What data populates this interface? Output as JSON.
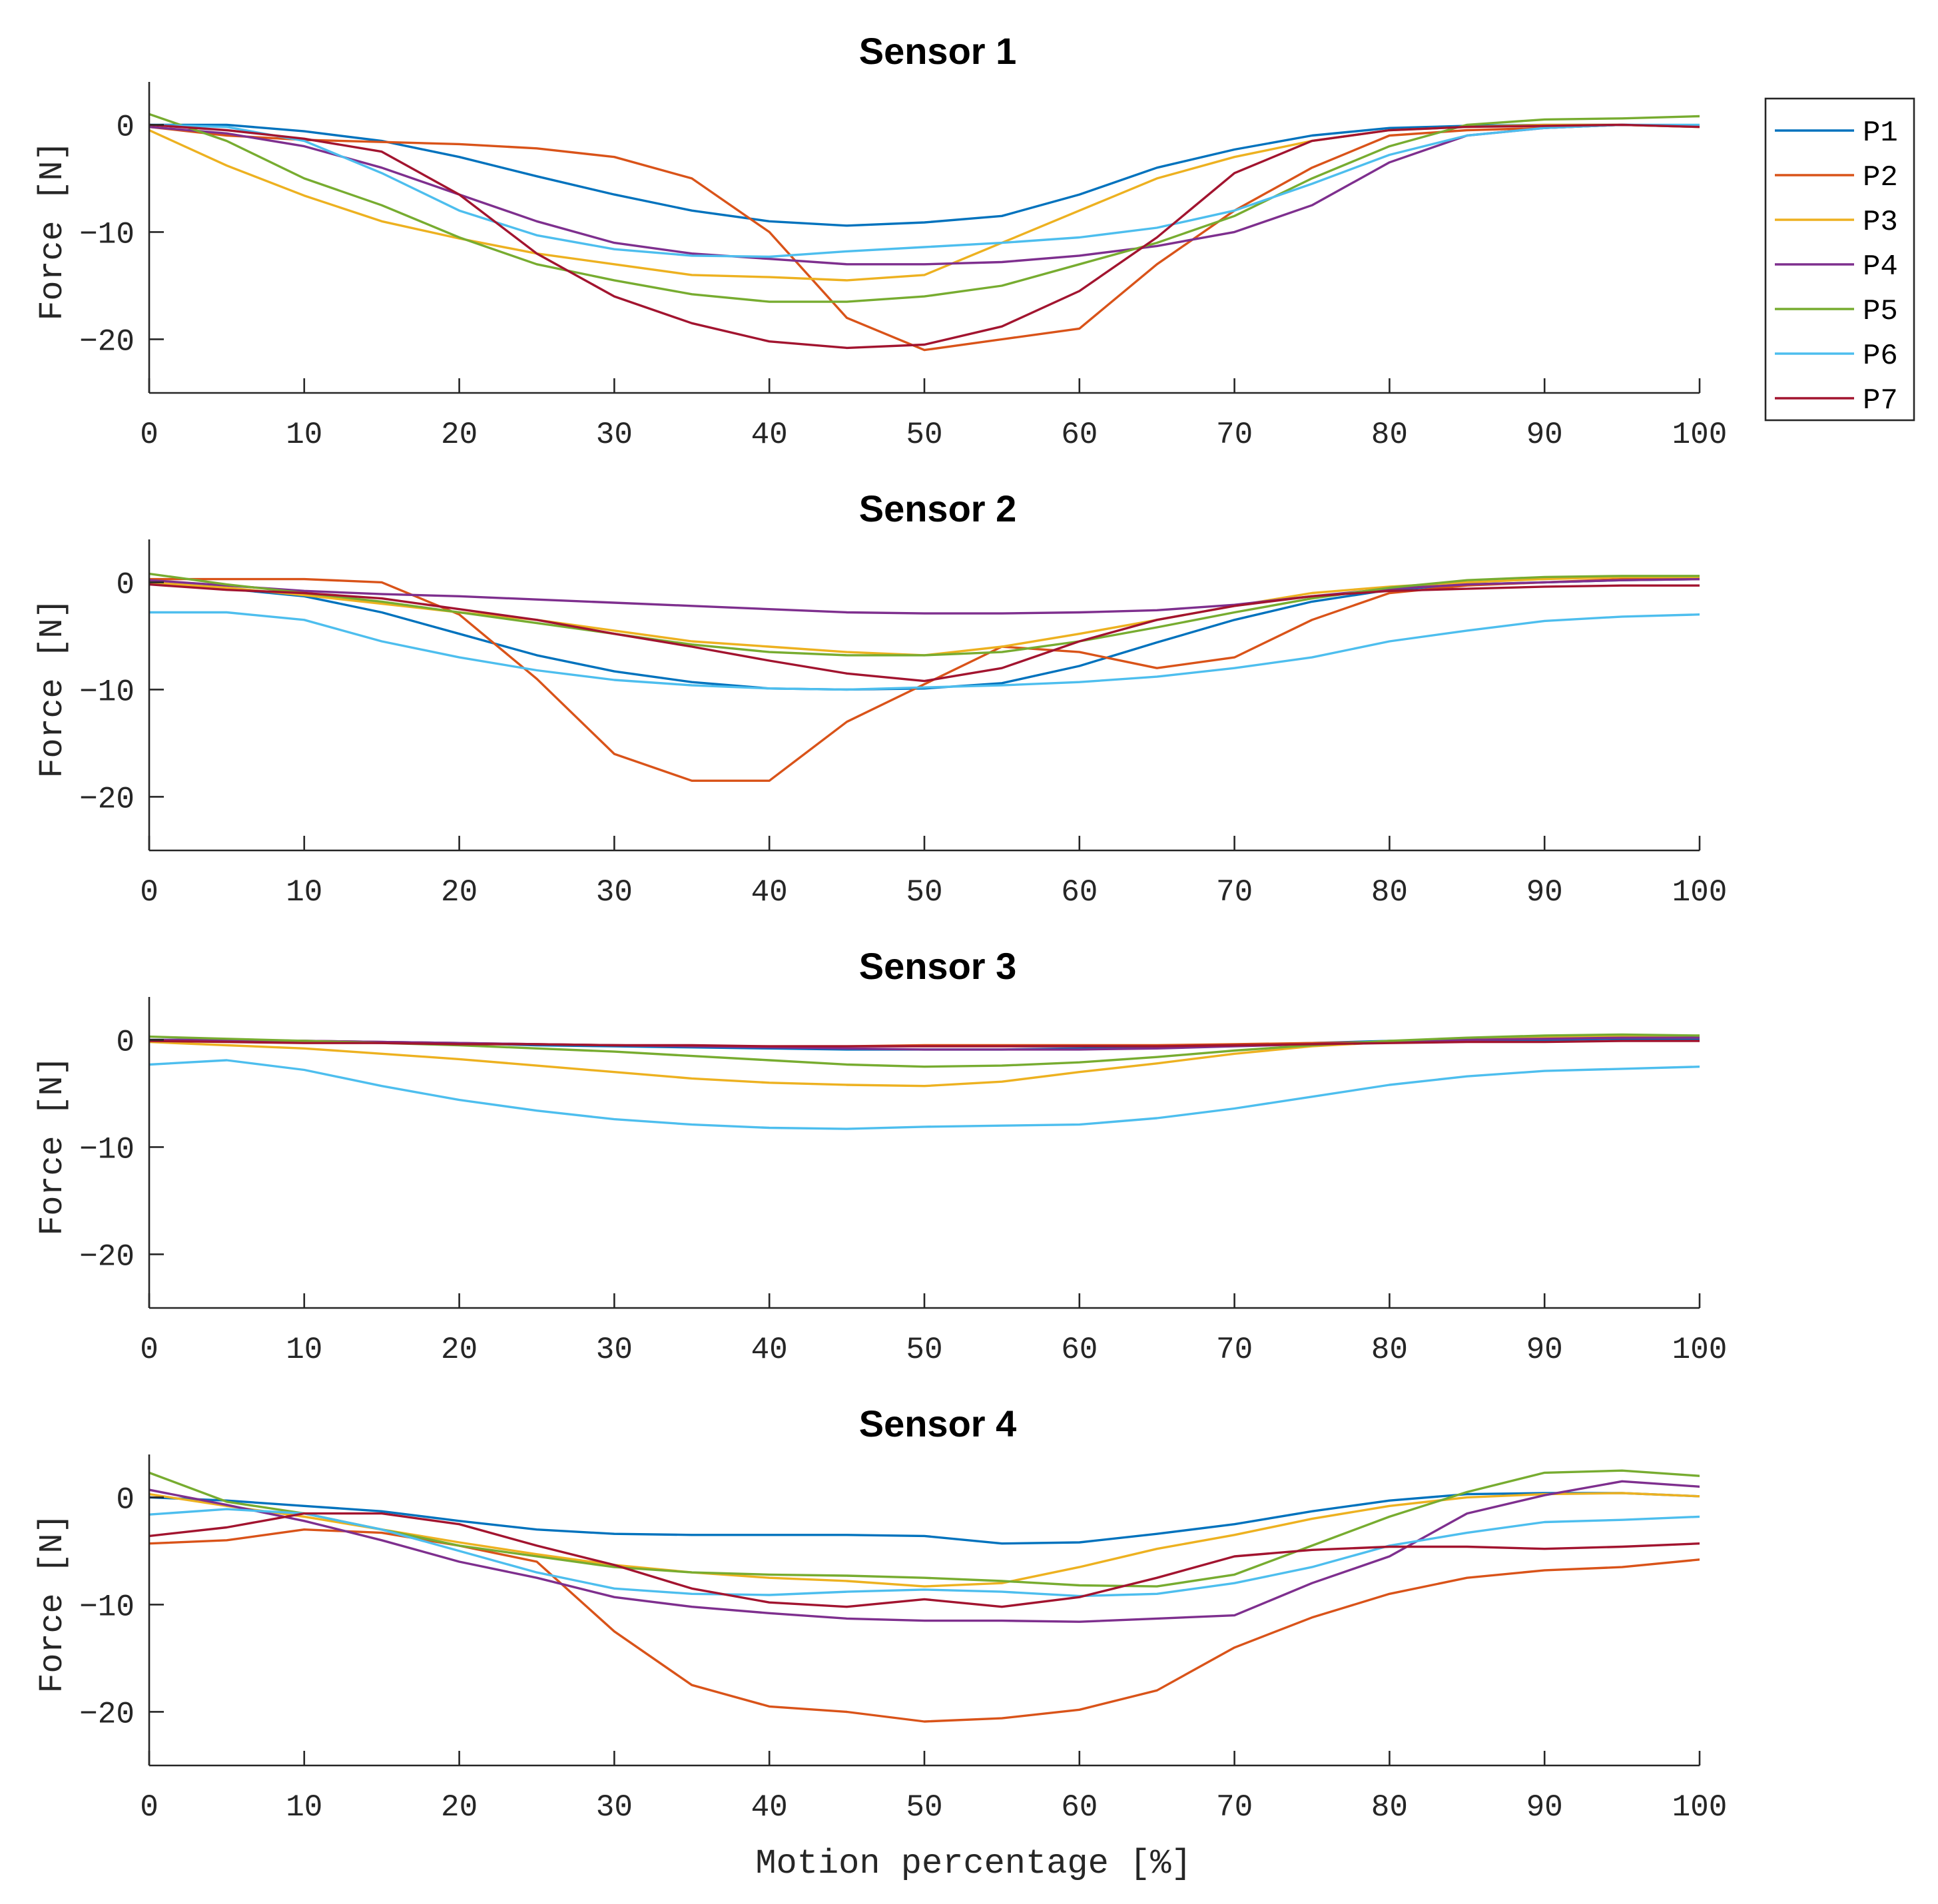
{
  "chart_data": {
    "type": "line",
    "xlabel": "Motion percentage [%]",
    "xlim": [
      0,
      100
    ],
    "xticks": [
      0,
      10,
      20,
      30,
      40,
      50,
      60,
      70,
      80,
      90,
      100
    ],
    "legend": {
      "placement": "right of top panel",
      "entries": [
        "P1",
        "P2",
        "P3",
        "P4",
        "P5",
        "P6",
        "P7"
      ]
    },
    "colors": {
      "P1": "#0072BD",
      "P2": "#D95319",
      "P3": "#EDB120",
      "P4": "#7E2F8E",
      "P5": "#77AC30",
      "P6": "#4DBEEE",
      "P7": "#A2142F"
    },
    "x": [
      0,
      5,
      10,
      15,
      20,
      25,
      30,
      35,
      40,
      45,
      50,
      55,
      60,
      65,
      70,
      75,
      80,
      85,
      90,
      95,
      100
    ],
    "panels": [
      {
        "title": "Sensor 1",
        "ylabel": "Force [N]",
        "ylim": [
          -25,
          4
        ],
        "yticks": [
          0,
          -10,
          -20
        ],
        "series": [
          {
            "name": "P1",
            "values": [
              0,
              0,
              -0.6,
              -1.5,
              -3,
              -4.8,
              -6.5,
              -8,
              -9,
              -9.4,
              -9.1,
              -8.5,
              -6.5,
              -4,
              -2.3,
              -1,
              -0.3,
              -0.1,
              0,
              0,
              -0.1
            ]
          },
          {
            "name": "P2",
            "values": [
              -0.2,
              -1,
              -1.4,
              -1.6,
              -1.8,
              -2.2,
              -3,
              -5,
              -10,
              -18,
              -21,
              -20,
              -19,
              -13,
              -8,
              -4,
              -1,
              -0.5,
              -0.3,
              0,
              -0.2
            ]
          },
          {
            "name": "P3",
            "values": [
              -0.5,
              -3.8,
              -6.6,
              -9,
              -10.6,
              -12,
              -13,
              -14,
              -14.2,
              -14.5,
              -14,
              -11,
              -8,
              -5,
              -3,
              -1.5,
              -0.5,
              -0.2,
              0,
              0,
              -0.2
            ]
          },
          {
            "name": "P4",
            "values": [
              -0.2,
              -0.8,
              -2,
              -4,
              -6.5,
              -9,
              -11,
              -12,
              -12.5,
              -13,
              -13,
              -12.8,
              -12.2,
              -11.3,
              -10,
              -7.5,
              -3.5,
              -1,
              -0.3,
              0,
              -0.1
            ]
          },
          {
            "name": "P5",
            "values": [
              1,
              -1.5,
              -5,
              -7.5,
              -10.5,
              -13,
              -14.5,
              -15.8,
              -16.5,
              -16.5,
              -16,
              -15,
              -13,
              -11,
              -8.5,
              -5,
              -2,
              0,
              0.5,
              0.6,
              0.8
            ]
          },
          {
            "name": "P6",
            "values": [
              0,
              -0.2,
              -1.5,
              -4.5,
              -8,
              -10.3,
              -11.6,
              -12.2,
              -12.3,
              -11.8,
              -11.4,
              -11,
              -10.5,
              -9.6,
              -8,
              -5.5,
              -2.8,
              -1,
              -0.3,
              0,
              0
            ]
          },
          {
            "name": "P7",
            "values": [
              0,
              -0.5,
              -1.3,
              -2.5,
              -6.5,
              -12,
              -16,
              -18.5,
              -20.2,
              -20.8,
              -20.5,
              -18.8,
              -15.5,
              -10.5,
              -4.5,
              -1.5,
              -0.5,
              -0.2,
              -0.1,
              0,
              -0.2
            ]
          }
        ]
      },
      {
        "title": "Sensor 2",
        "ylabel": "Force [N]",
        "ylim": [
          -25,
          4
        ],
        "yticks": [
          0,
          -10,
          -20
        ],
        "series": [
          {
            "name": "P1",
            "values": [
              0,
              -0.6,
              -1.3,
              -2.8,
              -4.8,
              -6.8,
              -8.3,
              -9.3,
              -9.9,
              -10,
              -9.9,
              -9.4,
              -7.8,
              -5.6,
              -3.5,
              -1.8,
              -0.7,
              -0.2,
              0,
              0.2,
              0.3
            ]
          },
          {
            "name": "P2",
            "values": [
              0.3,
              0.3,
              0.3,
              0,
              -3,
              -9,
              -16,
              -18.5,
              -18.5,
              -13,
              -9.5,
              -6,
              -6.5,
              -8,
              -7,
              -3.5,
              -1,
              -0.3,
              0,
              0.3,
              0.3
            ]
          },
          {
            "name": "P3",
            "values": [
              0,
              -0.5,
              -1.2,
              -2,
              -2.8,
              -3.5,
              -4.5,
              -5.5,
              -6,
              -6.5,
              -6.8,
              -6,
              -4.8,
              -3.5,
              -2.2,
              -1,
              -0.4,
              0,
              0.3,
              0.5,
              0.5
            ]
          },
          {
            "name": "P4",
            "values": [
              0.2,
              -0.3,
              -0.8,
              -1.1,
              -1.3,
              -1.6,
              -1.9,
              -2.2,
              -2.5,
              -2.8,
              -2.9,
              -2.9,
              -2.8,
              -2.6,
              -2.1,
              -1.3,
              -0.6,
              -0.2,
              0,
              0.2,
              0.3
            ]
          },
          {
            "name": "P5",
            "values": [
              0.8,
              -0.2,
              -1,
              -1.8,
              -2.8,
              -3.8,
              -4.8,
              -5.8,
              -6.5,
              -6.8,
              -6.8,
              -6.5,
              -5.5,
              -4.2,
              -2.8,
              -1.5,
              -0.5,
              0.2,
              0.5,
              0.6,
              0.6
            ]
          },
          {
            "name": "P6",
            "values": [
              -2.8,
              -2.8,
              -3.5,
              -5.5,
              -7,
              -8.2,
              -9.1,
              -9.6,
              -9.9,
              -10,
              -9.8,
              -9.6,
              -9.3,
              -8.8,
              -8,
              -7,
              -5.5,
              -4.5,
              -3.6,
              -3.2,
              -3
            ]
          },
          {
            "name": "P7",
            "values": [
              -0.2,
              -0.7,
              -1,
              -1.5,
              -2.5,
              -3.5,
              -4.8,
              -6,
              -7.3,
              -8.5,
              -9.2,
              -8,
              -5.5,
              -3.5,
              -2.2,
              -1.3,
              -0.8,
              -0.6,
              -0.4,
              -0.3,
              -0.3
            ]
          }
        ]
      },
      {
        "title": "Sensor 3",
        "ylabel": "Force [N]",
        "ylim": [
          -25,
          4
        ],
        "yticks": [
          0,
          -10,
          -20
        ],
        "series": [
          {
            "name": "P1",
            "values": [
              0,
              0,
              -0.1,
              -0.2,
              -0.3,
              -0.5,
              -0.6,
              -0.7,
              -0.8,
              -0.9,
              -0.9,
              -0.9,
              -0.8,
              -0.7,
              -0.5,
              -0.3,
              -0.1,
              0,
              0,
              0.1,
              0.1
            ]
          },
          {
            "name": "P2",
            "values": [
              -0.1,
              -0.1,
              -0.1,
              -0.2,
              -0.3,
              -0.4,
              -0.5,
              -0.6,
              -0.6,
              -0.6,
              -0.5,
              -0.5,
              -0.5,
              -0.5,
              -0.4,
              -0.3,
              -0.2,
              0,
              0.2,
              0.3,
              0.3
            ]
          },
          {
            "name": "P3",
            "values": [
              -0.2,
              -0.5,
              -0.8,
              -1.3,
              -1.8,
              -2.4,
              -3,
              -3.6,
              -4,
              -4.2,
              -4.3,
              -3.9,
              -3,
              -2.2,
              -1.3,
              -0.6,
              -0.2,
              0,
              0.2,
              0.3,
              0.4
            ]
          },
          {
            "name": "P4",
            "values": [
              0,
              0,
              -0.1,
              -0.2,
              -0.3,
              -0.4,
              -0.5,
              -0.6,
              -0.7,
              -0.8,
              -0.9,
              -0.9,
              -0.9,
              -0.8,
              -0.6,
              -0.4,
              -0.2,
              0,
              0.1,
              0.2,
              0.2
            ]
          },
          {
            "name": "P5",
            "values": [
              0.3,
              0.1,
              -0.1,
              -0.3,
              -0.5,
              -0.8,
              -1.1,
              -1.5,
              -1.9,
              -2.3,
              -2.5,
              -2.4,
              -2.1,
              -1.6,
              -1,
              -0.5,
              -0.1,
              0.2,
              0.4,
              0.5,
              0.4
            ]
          },
          {
            "name": "P6",
            "values": [
              -2.3,
              -1.9,
              -2.8,
              -4.3,
              -5.6,
              -6.6,
              -7.4,
              -7.9,
              -8.2,
              -8.3,
              -8.1,
              -8,
              -7.9,
              -7.3,
              -6.4,
              -5.3,
              -4.2,
              -3.4,
              -2.9,
              -2.7,
              -2.5
            ]
          },
          {
            "name": "P7",
            "values": [
              -0.1,
              -0.2,
              -0.3,
              -0.3,
              -0.4,
              -0.4,
              -0.5,
              -0.5,
              -0.6,
              -0.6,
              -0.6,
              -0.6,
              -0.6,
              -0.6,
              -0.5,
              -0.4,
              -0.3,
              -0.2,
              -0.2,
              -0.1,
              -0.1
            ]
          }
        ]
      },
      {
        "title": "Sensor 4",
        "ylabel": "Force [N]",
        "ylim": [
          -25,
          4
        ],
        "yticks": [
          0,
          -10,
          -20
        ],
        "series": [
          {
            "name": "P1",
            "values": [
              0,
              -0.3,
              -0.8,
              -1.3,
              -2.2,
              -3,
              -3.4,
              -3.5,
              -3.5,
              -3.5,
              -3.6,
              -4.3,
              -4.2,
              -3.4,
              -2.5,
              -1.3,
              -0.3,
              0.3,
              0.4,
              0.4,
              0.1
            ]
          },
          {
            "name": "P2",
            "values": [
              -4.3,
              -4,
              -3,
              -3.3,
              -4.5,
              -6,
              -12.5,
              -17.5,
              -19.5,
              -20,
              -20.9,
              -20.6,
              -19.8,
              -18,
              -14,
              -11.2,
              -9,
              -7.5,
              -6.8,
              -6.5,
              -5.8
            ]
          },
          {
            "name": "P3",
            "values": [
              0.3,
              -0.8,
              -1.8,
              -3,
              -4.2,
              -5.3,
              -6.3,
              -7,
              -7.5,
              -7.8,
              -8.3,
              -8,
              -6.5,
              -4.8,
              -3.5,
              -2,
              -0.8,
              0,
              0.3,
              0.4,
              0.1
            ]
          },
          {
            "name": "P4",
            "values": [
              0.7,
              -0.7,
              -2.2,
              -4,
              -6,
              -7.5,
              -9.3,
              -10.2,
              -10.8,
              -11.3,
              -11.5,
              -11.5,
              -11.6,
              -11.3,
              -11,
              -8,
              -5.5,
              -1.5,
              0.2,
              1.5,
              1
            ]
          },
          {
            "name": "P5",
            "values": [
              2.3,
              -0.4,
              -1.5,
              -3,
              -4.5,
              -5.5,
              -6.5,
              -7,
              -7.2,
              -7.3,
              -7.5,
              -7.8,
              -8.2,
              -8.3,
              -7.2,
              -4.5,
              -1.8,
              0.5,
              2.3,
              2.5,
              2
            ]
          },
          {
            "name": "P6",
            "values": [
              -1.6,
              -1.1,
              -1.5,
              -3,
              -5,
              -7,
              -8.5,
              -9,
              -9.1,
              -8.8,
              -8.6,
              -8.8,
              -9.2,
              -9,
              -8,
              -6.5,
              -4.5,
              -3.3,
              -2.3,
              -2.1,
              -1.8
            ]
          },
          {
            "name": "P7",
            "values": [
              -3.6,
              -2.8,
              -1.5,
              -1.5,
              -2.5,
              -4.5,
              -6.3,
              -8.5,
              -9.8,
              -10.2,
              -9.5,
              -10.2,
              -9.3,
              -7.5,
              -5.5,
              -4.9,
              -4.6,
              -4.6,
              -4.8,
              -4.6,
              -4.3
            ]
          }
        ]
      }
    ]
  }
}
